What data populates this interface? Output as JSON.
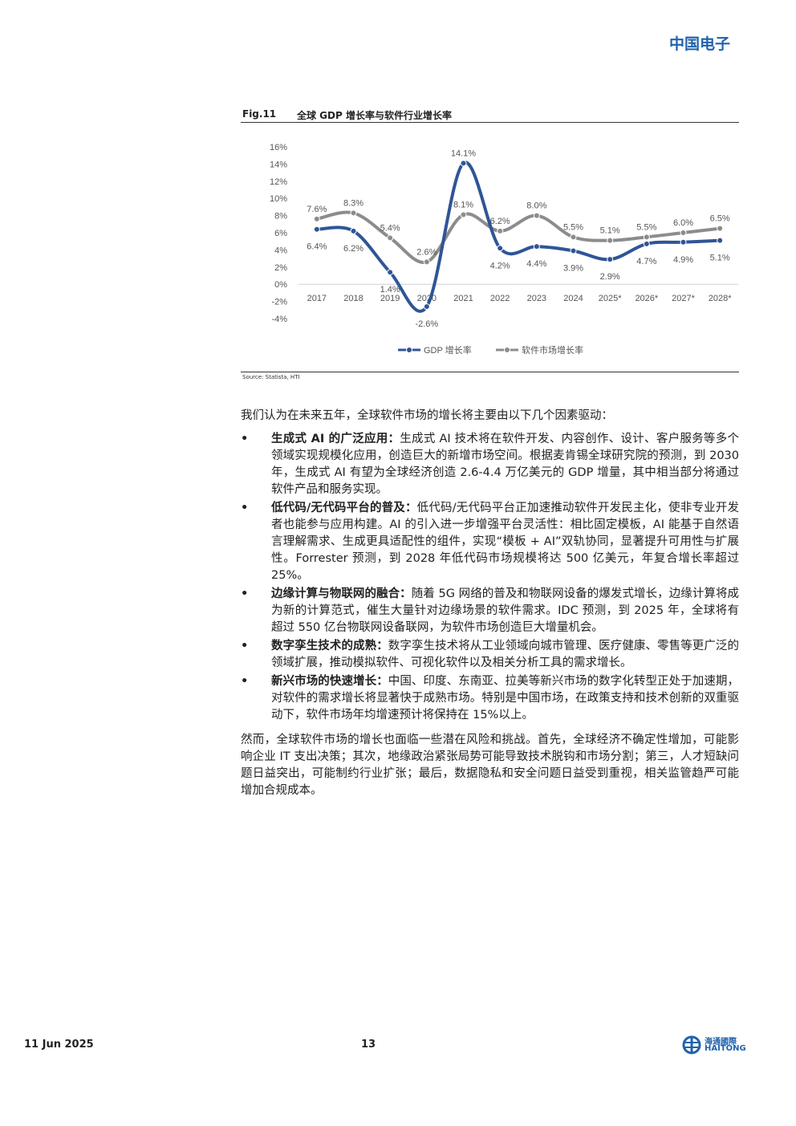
{
  "header": {
    "brand": "中国电子"
  },
  "figure": {
    "label": "Fig.11",
    "title": "全球 GDP 增长率与软件行业增长率",
    "source": "Source: Statista, HTI"
  },
  "chart_data": {
    "type": "line",
    "categories": [
      "2017",
      "2018",
      "2019",
      "2020",
      "2021",
      "2022",
      "2023",
      "2024",
      "2025*",
      "2026*",
      "2027*",
      "2028*"
    ],
    "series": [
      {
        "name": "GDP 增长率",
        "color": "#2f5597",
        "values": [
          6.4,
          6.2,
          1.4,
          -2.6,
          14.1,
          4.2,
          4.4,
          3.9,
          2.9,
          4.7,
          4.9,
          5.1
        ],
        "value_labels": [
          "6.4%",
          "6.2%",
          "1.4%",
          "-2.6%",
          "14.1%",
          "4.2%",
          "4.4%",
          "3.9%",
          "2.9%",
          "4.7%",
          "4.9%",
          "5.1%"
        ]
      },
      {
        "name": "软件市场增长率",
        "color": "#8c8c8c",
        "values": [
          7.6,
          8.3,
          5.4,
          2.6,
          8.1,
          6.2,
          8.0,
          5.5,
          5.1,
          5.5,
          6.0,
          6.5
        ],
        "value_labels": [
          "7.6%",
          "8.3%",
          "5.4%",
          "2.6%",
          "8.1%",
          "6.2%",
          "8.0%",
          "5.5%",
          "5.1%",
          "5.5%",
          "6.0%",
          "6.5%"
        ]
      }
    ],
    "ylim": [
      -4,
      16
    ],
    "yticks": [
      {
        "value": -4,
        "label": "-4%"
      },
      {
        "value": -2,
        "label": "-2%"
      },
      {
        "value": 0,
        "label": "0%"
      },
      {
        "value": 2,
        "label": "2%"
      },
      {
        "value": 4,
        "label": "4%"
      },
      {
        "value": 6,
        "label": "6%"
      },
      {
        "value": 8,
        "label": "8%"
      },
      {
        "value": 10,
        "label": "10%"
      },
      {
        "value": 12,
        "label": "12%"
      },
      {
        "value": 14,
        "label": "14%"
      },
      {
        "value": 16,
        "label": "16%"
      }
    ],
    "legend": "bottom"
  },
  "body": {
    "intro": "我们认为在未来五年，全球软件市场的增长将主要由以下几个因素驱动：",
    "bullets": [
      {
        "heading": "生成式 AI 的广泛应用：",
        "text": "生成式 AI 技术将在软件开发、内容创作、设计、客户服务等多个领域实现规模化应用，创造巨大的新增市场空间。根据麦肯锡全球研究院的预测，到 2030 年，生成式 AI 有望为全球经济创造 2.6-4.4 万亿美元的 GDP 增量，其中相当部分将通过软件产品和服务实现。"
      },
      {
        "heading": "低代码/无代码平台的普及：",
        "text": "低代码/无代码平台正加速推动软件开发民主化，使非专业开发者也能参与应用构建。AI 的引入进一步增强平台灵活性：相比固定模板，AI 能基于自然语言理解需求、生成更具适配性的组件，实现“模板 + AI”双轨协同，显著提升可用性与扩展性。Forrester 预测，到 2028 年低代码市场规模将达 500 亿美元，年复合增长率超过 25%。"
      },
      {
        "heading": "边缘计算与物联网的融合：",
        "text": "随着 5G 网络的普及和物联网设备的爆发式增长，边缘计算将成为新的计算范式，催生大量针对边缘场景的软件需求。IDC 预测，到 2025 年，全球将有超过 550 亿台物联网设备联网，为软件市场创造巨大增量机会。"
      },
      {
        "heading": "数字孪生技术的成熟：",
        "text": "数字孪生技术将从工业领域向城市管理、医疗健康、零售等更广泛的领域扩展，推动模拟软件、可视化软件以及相关分析工具的需求增长。"
      },
      {
        "heading": "新兴市场的快速增长：",
        "text": "中国、印度、东南亚、拉美等新兴市场的数字化转型正处于加速期，对软件的需求增长将显著快于成熟市场。特别是中国市场，在政策支持和技术创新的双重驱动下，软件市场年均增速预计将保持在 15%以上。"
      }
    ],
    "closing": "然而，全球软件市场的增长也面临一些潜在风险和挑战。首先，全球经济不确定性增加，可能影响企业 IT 支出决策；其次，地缘政治紧张局势可能导致技术脱钩和市场分割；第三，人才短缺问题日益突出，可能制约行业扩张；最后，数据隐私和安全问题日益受到重视，相关监管趋严可能增加合规成本。"
  },
  "footer": {
    "date": "11 Jun 2025",
    "page": "13",
    "logo_cn": "海通國際",
    "logo_en": "HAITONG"
  }
}
